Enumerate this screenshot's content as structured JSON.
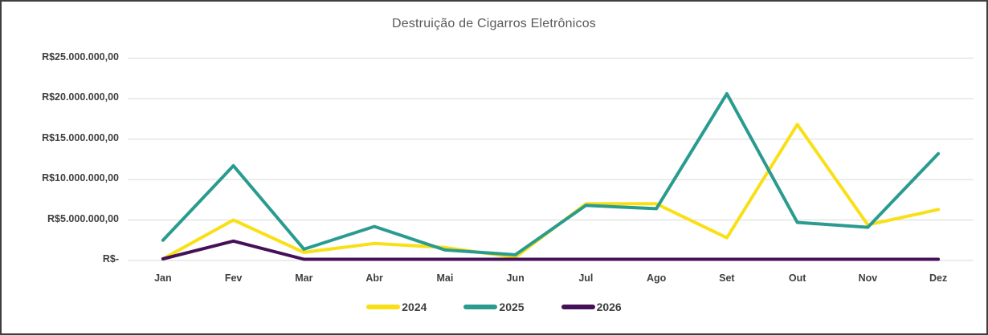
{
  "chart_data": {
    "type": "line",
    "title": "Destruição de Cigarros Eletrônicos",
    "categories": [
      "Jan",
      "Fev",
      "Mar",
      "Abr",
      "Mai",
      "Jun",
      "Jul",
      "Ago",
      "Set",
      "Out",
      "Nov",
      "Dez"
    ],
    "series": [
      {
        "name": "2024",
        "color": "#F9E016",
        "values": [
          200000,
          5000000,
          1000000,
          2100000,
          1600000,
          400000,
          7000000,
          7000000,
          2800000,
          16800000,
          4400000,
          6300000
        ]
      },
      {
        "name": "2025",
        "color": "#2A9B8F",
        "values": [
          2500000,
          11700000,
          1400000,
          4200000,
          1300000,
          700000,
          6800000,
          6400000,
          20600000,
          4700000,
          4100000,
          13200000
        ]
      },
      {
        "name": "2026",
        "color": "#451058",
        "values": [
          200000,
          2400000,
          150000,
          150000,
          150000,
          150000,
          150000,
          150000,
          150000,
          150000,
          150000,
          150000
        ]
      }
    ],
    "xlabel": "",
    "ylabel": "",
    "ylim": [
      0,
      25000000
    ],
    "y_tick_interval": 5000000,
    "y_tick_labels": [
      "R$-",
      "R$5.000.000,00",
      "R$10.000.000,00",
      "R$15.000.000,00",
      "R$20.000.000,00",
      "R$25.000.000,00"
    ],
    "grid": true,
    "gridline_color": "#D9D9D9",
    "legend_position": "bottom"
  }
}
